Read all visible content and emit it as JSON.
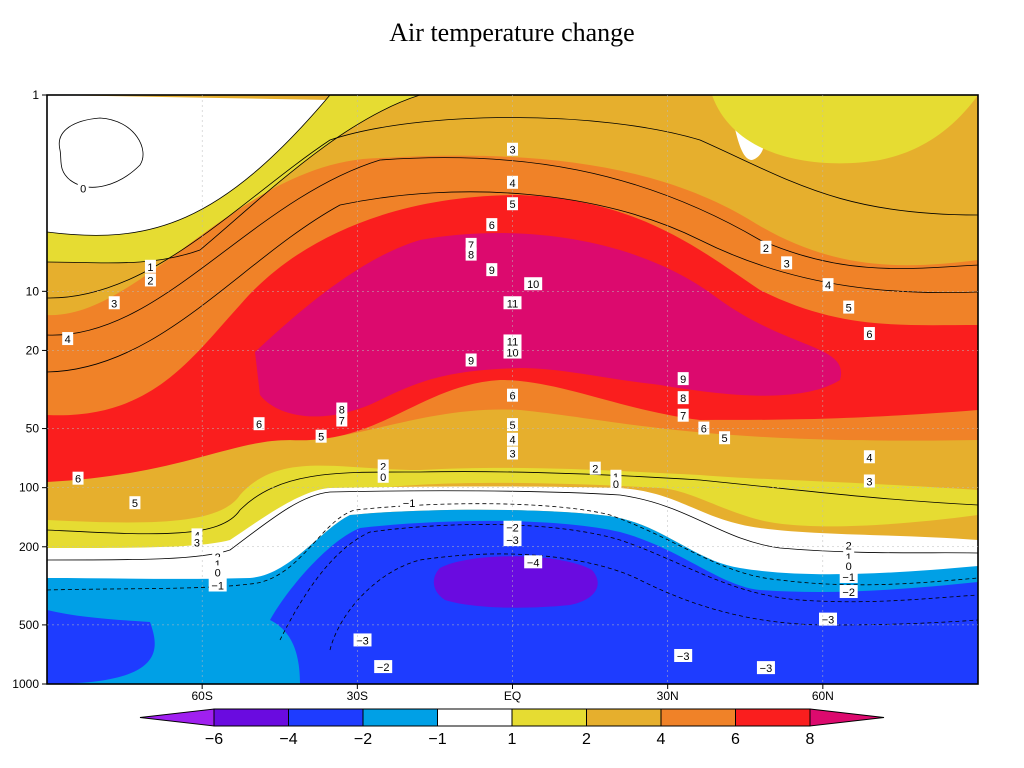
{
  "title": "Air temperature change",
  "chart_data": {
    "type": "heatmap",
    "title": "Air temperature change",
    "x_tick_labels": [
      "60S",
      "30S",
      "EQ",
      "30N",
      "60N"
    ],
    "x_tick_values": [
      -60,
      -30,
      0,
      30,
      60
    ],
    "xlim": [
      -90,
      90
    ],
    "y_tick_labels": [
      "1",
      "10",
      "20",
      "50",
      "100",
      "200",
      "500",
      "1000"
    ],
    "y_tick_values": [
      1,
      10,
      20,
      50,
      100,
      200,
      500,
      1000
    ],
    "ylim": [
      1000,
      1
    ],
    "y_scale": "log",
    "contour_levels": [
      -4,
      -3,
      -2,
      -1,
      0,
      1,
      2,
      3,
      4,
      5,
      6,
      7,
      8,
      9,
      10,
      11
    ],
    "contour_labels": [
      {
        "text": "0",
        "lat": -83,
        "p": 3.0
      },
      {
        "text": "3",
        "lat": 0,
        "p": 1.9
      },
      {
        "text": "4",
        "lat": 0,
        "p": 2.8
      },
      {
        "text": "5",
        "lat": 0,
        "p": 3.6
      },
      {
        "text": "6",
        "lat": -4,
        "p": 4.6
      },
      {
        "text": "7",
        "lat": -8,
        "p": 5.8
      },
      {
        "text": "8",
        "lat": -8,
        "p": 6.5
      },
      {
        "text": "9",
        "lat": -4,
        "p": 7.8
      },
      {
        "text": "10",
        "lat": 4,
        "p": 9.2
      },
      {
        "text": "11",
        "lat": 0,
        "p": 11.5
      },
      {
        "text": "11",
        "lat": 0,
        "p": 18.0
      },
      {
        "text": "10",
        "lat": 0,
        "p": 20.5
      },
      {
        "text": "9",
        "lat": -8,
        "p": 22.5
      },
      {
        "text": "1",
        "lat": -70,
        "p": 7.5
      },
      {
        "text": "2",
        "lat": -70,
        "p": 8.8
      },
      {
        "text": "3",
        "lat": -77,
        "p": 11.5
      },
      {
        "text": "4",
        "lat": -86,
        "p": 17.5
      },
      {
        "text": "2",
        "lat": 49,
        "p": 6.0
      },
      {
        "text": "3",
        "lat": 53,
        "p": 7.2
      },
      {
        "text": "4",
        "lat": 61,
        "p": 9.3
      },
      {
        "text": "5",
        "lat": 65,
        "p": 12.1
      },
      {
        "text": "6",
        "lat": 69,
        "p": 16.5
      },
      {
        "text": "9",
        "lat": 33,
        "p": 28.0
      },
      {
        "text": "8",
        "lat": 33,
        "p": 35.0
      },
      {
        "text": "7",
        "lat": 33,
        "p": 43.0
      },
      {
        "text": "6",
        "lat": 37,
        "p": 50.0
      },
      {
        "text": "5",
        "lat": 41,
        "p": 56.0
      },
      {
        "text": "6",
        "lat": 0,
        "p": 34.0
      },
      {
        "text": "8",
        "lat": -33,
        "p": 40.0
      },
      {
        "text": "7",
        "lat": -33,
        "p": 45.5
      },
      {
        "text": "6",
        "lat": -49,
        "p": 47.5
      },
      {
        "text": "5",
        "lat": -37,
        "p": 55.0
      },
      {
        "text": "6",
        "lat": -84,
        "p": 90.0
      },
      {
        "text": "5",
        "lat": -73,
        "p": 120.0
      },
      {
        "text": "5",
        "lat": 0,
        "p": 48.0
      },
      {
        "text": "4",
        "lat": 0,
        "p": 57.0
      },
      {
        "text": "3",
        "lat": 0,
        "p": 67.0
      },
      {
        "text": "2",
        "lat": -25,
        "p": 78.0
      },
      {
        "text": "0",
        "lat": -25,
        "p": 88.0
      },
      {
        "text": "2",
        "lat": 16,
        "p": 80.0
      },
      {
        "text": "1",
        "lat": 20,
        "p": 88.0
      },
      {
        "text": "0",
        "lat": 20,
        "p": 96.0
      },
      {
        "text": "4",
        "lat": 69,
        "p": 70.0
      },
      {
        "text": "3",
        "lat": 69,
        "p": 93.0
      },
      {
        "text": "−1",
        "lat": -20,
        "p": 120.0
      },
      {
        "text": "−2",
        "lat": 0,
        "p": 160.0
      },
      {
        "text": "−3",
        "lat": 0,
        "p": 185.0
      },
      {
        "text": "−4",
        "lat": 4,
        "p": 240.0
      },
      {
        "text": "4",
        "lat": -61,
        "p": 175.0
      },
      {
        "text": "3",
        "lat": -61,
        "p": 190.0
      },
      {
        "text": "2",
        "lat": -57,
        "p": 225.0
      },
      {
        "text": "1",
        "lat": -57,
        "p": 245.0
      },
      {
        "text": "0",
        "lat": -57,
        "p": 270.0
      },
      {
        "text": "−1",
        "lat": -57,
        "p": 315.0
      },
      {
        "text": "2",
        "lat": 65,
        "p": 197.0
      },
      {
        "text": "1",
        "lat": 65,
        "p": 225.0
      },
      {
        "text": "0",
        "lat": 65,
        "p": 250.0
      },
      {
        "text": "−1",
        "lat": 65,
        "p": 285.0
      },
      {
        "text": "−2",
        "lat": 65,
        "p": 340.0
      },
      {
        "text": "−3",
        "lat": 61,
        "p": 470.0
      },
      {
        "text": "−3",
        "lat": -29,
        "p": 600.0
      },
      {
        "text": "−2",
        "lat": -25,
        "p": 820.0
      },
      {
        "text": "−3",
        "lat": 33,
        "p": 720.0
      },
      {
        "text": "−3",
        "lat": 49,
        "p": 830.0
      }
    ],
    "colorbar": {
      "tick_labels": [
        "−6",
        "−4",
        "−2",
        "−1",
        "1",
        "2",
        "4",
        "6",
        "8"
      ],
      "colors": [
        "#a020f0",
        "#6a0be0",
        "#1e3cff",
        "#00a0e6",
        "#ffffff",
        "#e6dc32",
        "#e6af2d",
        "#f08228",
        "#fa1e1e",
        "#dc0a6e"
      ]
    }
  }
}
